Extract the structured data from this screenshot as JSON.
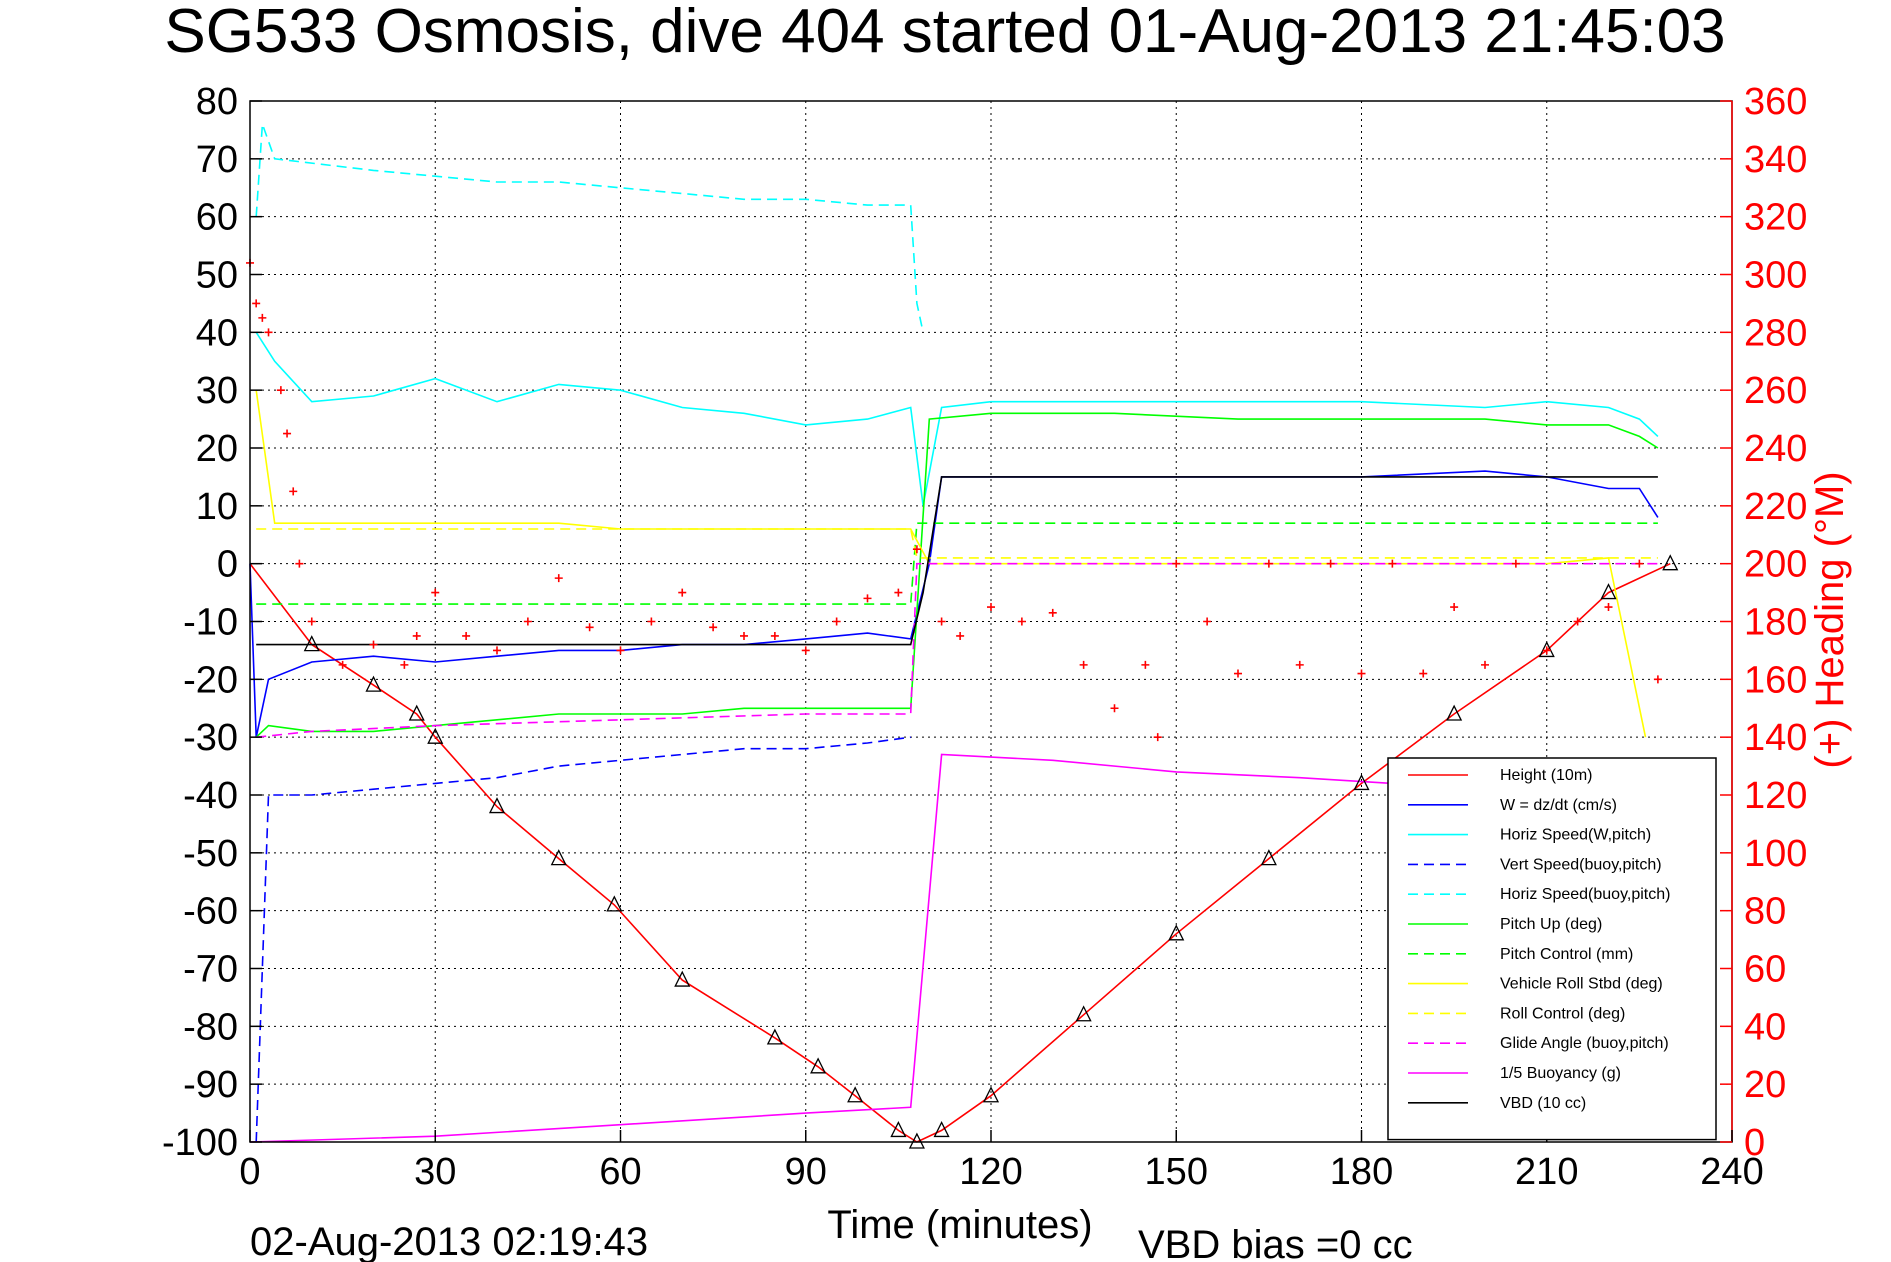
{
  "chart_data": {
    "type": "line",
    "title": "SG533 Osmosis, dive 404 started 01-Aug-2013 21:45:03",
    "xlabel": "Time (minutes)",
    "ylabel_right": "(+) Heading (°M)",
    "xlim": [
      0,
      240
    ],
    "ylim": [
      -100,
      80
    ],
    "ylim_right": [
      0,
      360
    ],
    "x_ticks": [
      "0",
      "30",
      "60",
      "90",
      "120",
      "150",
      "180",
      "210",
      "240"
    ],
    "y_ticks": [
      "80",
      "70",
      "60",
      "50",
      "40",
      "30",
      "20",
      "10",
      "0",
      "-10",
      "-20",
      "-30",
      "-40",
      "-50",
      "-60",
      "-70",
      "-80",
      "-90",
      "-100"
    ],
    "y_ticks_right": [
      "360",
      "340",
      "320",
      "300",
      "280",
      "260",
      "240",
      "220",
      "200",
      "180",
      "160",
      "140",
      "120",
      "100",
      "80",
      "60",
      "40",
      "20",
      "0"
    ],
    "grid": true,
    "legend_position": "bottom-right",
    "footer_left": "02-Aug-2013 02:19:43",
    "footer_right": "VBD bias =0 cc",
    "colors": {
      "height": "#ff0000",
      "w": "#0000ff",
      "horiz_speed_pitch": "#00ffff",
      "pitch_up": "#00ff00",
      "roll": "#ffff00",
      "glide": "#ff00ff",
      "vbd": "#000000",
      "heading": "#ff0000"
    },
    "series": [
      {
        "name": "Height (10m)",
        "color": "#ff0000",
        "style": "solid",
        "points": [
          [
            0,
            0
          ],
          [
            10,
            -14
          ],
          [
            20,
            -21
          ],
          [
            27,
            -26
          ],
          [
            30,
            -30
          ],
          [
            40,
            -42
          ],
          [
            50,
            -51
          ],
          [
            59,
            -59
          ],
          [
            70,
            -72
          ],
          [
            85,
            -82
          ],
          [
            92,
            -87
          ],
          [
            98,
            -92
          ],
          [
            105,
            -98
          ],
          [
            108,
            -100
          ],
          [
            112,
            -98
          ],
          [
            120,
            -92
          ],
          [
            135,
            -78
          ],
          [
            150,
            -64
          ],
          [
            165,
            -51
          ],
          [
            180,
            -38
          ],
          [
            195,
            -26
          ],
          [
            210,
            -15
          ],
          [
            220,
            -5
          ],
          [
            230,
            0
          ]
        ]
      },
      {
        "name": "W = dz/dt (cm/s)",
        "color": "#0000ff",
        "style": "solid",
        "points": [
          [
            0,
            0
          ],
          [
            1,
            -30
          ],
          [
            3,
            -20
          ],
          [
            10,
            -17
          ],
          [
            20,
            -16
          ],
          [
            30,
            -17
          ],
          [
            40,
            -16
          ],
          [
            50,
            -15
          ],
          [
            60,
            -15
          ],
          [
            70,
            -14
          ],
          [
            80,
            -14
          ],
          [
            90,
            -13
          ],
          [
            100,
            -12
          ],
          [
            107,
            -13
          ],
          [
            110,
            0
          ],
          [
            112,
            15
          ],
          [
            120,
            15
          ],
          [
            140,
            15
          ],
          [
            160,
            15
          ],
          [
            180,
            15
          ],
          [
            200,
            16
          ],
          [
            210,
            15
          ],
          [
            220,
            13
          ],
          [
            225,
            13
          ],
          [
            228,
            8
          ]
        ]
      },
      {
        "name": "Horiz Speed(W,pitch)",
        "color": "#00ffff",
        "style": "solid",
        "points": [
          [
            1,
            40
          ],
          [
            4,
            35
          ],
          [
            10,
            28
          ],
          [
            20,
            29
          ],
          [
            30,
            32
          ],
          [
            40,
            28
          ],
          [
            50,
            31
          ],
          [
            60,
            30
          ],
          [
            70,
            27
          ],
          [
            80,
            26
          ],
          [
            90,
            24
          ],
          [
            100,
            25
          ],
          [
            107,
            27
          ],
          [
            109,
            10
          ],
          [
            112,
            27
          ],
          [
            120,
            28
          ],
          [
            140,
            28
          ],
          [
            160,
            28
          ],
          [
            180,
            28
          ],
          [
            200,
            27
          ],
          [
            210,
            28
          ],
          [
            220,
            27
          ],
          [
            225,
            25
          ],
          [
            228,
            22
          ]
        ]
      },
      {
        "name": "Vert Speed(buoy,pitch)",
        "color": "#0000ff",
        "style": "dashed",
        "points": [
          [
            1,
            -100
          ],
          [
            3,
            -40
          ],
          [
            10,
            -40
          ],
          [
            20,
            -39
          ],
          [
            30,
            -38
          ],
          [
            40,
            -37
          ],
          [
            50,
            -35
          ],
          [
            60,
            -34
          ],
          [
            70,
            -33
          ],
          [
            80,
            -32
          ],
          [
            90,
            -32
          ],
          [
            100,
            -31
          ],
          [
            107,
            -30
          ]
        ]
      },
      {
        "name": "Horiz Speed(buoy,pitch)",
        "color": "#00ffff",
        "style": "dashed",
        "points": [
          [
            1,
            60
          ],
          [
            2,
            76
          ],
          [
            4,
            70
          ],
          [
            20,
            68
          ],
          [
            30,
            67
          ],
          [
            40,
            66
          ],
          [
            50,
            66
          ],
          [
            60,
            65
          ],
          [
            70,
            64
          ],
          [
            80,
            63
          ],
          [
            90,
            63
          ],
          [
            100,
            62
          ],
          [
            107,
            62
          ],
          [
            108,
            45
          ],
          [
            109,
            40
          ]
        ]
      },
      {
        "name": "Pitch Up (deg)",
        "color": "#00ff00",
        "style": "solid",
        "points": [
          [
            1,
            -30
          ],
          [
            3,
            -28
          ],
          [
            10,
            -29
          ],
          [
            20,
            -29
          ],
          [
            30,
            -28
          ],
          [
            40,
            -27
          ],
          [
            50,
            -26
          ],
          [
            60,
            -26
          ],
          [
            70,
            -26
          ],
          [
            80,
            -25
          ],
          [
            90,
            -25
          ],
          [
            100,
            -25
          ],
          [
            107,
            -25
          ],
          [
            110,
            25
          ],
          [
            120,
            26
          ],
          [
            140,
            26
          ],
          [
            160,
            25
          ],
          [
            180,
            25
          ],
          [
            200,
            25
          ],
          [
            210,
            24
          ],
          [
            220,
            24
          ],
          [
            225,
            22
          ],
          [
            228,
            20
          ]
        ]
      },
      {
        "name": "Pitch Control (mm)",
        "color": "#00ff00",
        "style": "dashed",
        "points": [
          [
            1,
            -7
          ],
          [
            107,
            -7
          ],
          [
            108,
            7
          ],
          [
            228,
            7
          ]
        ]
      },
      {
        "name": "Vehicle Roll Stbd (deg)",
        "color": "#ffff00",
        "style": "solid",
        "points": [
          [
            1,
            30
          ],
          [
            4,
            7
          ],
          [
            20,
            7
          ],
          [
            30,
            7
          ],
          [
            40,
            7
          ],
          [
            50,
            7
          ],
          [
            60,
            6
          ],
          [
            70,
            6
          ],
          [
            80,
            6
          ],
          [
            90,
            6
          ],
          [
            100,
            6
          ],
          [
            107,
            6
          ],
          [
            110,
            0
          ],
          [
            130,
            0
          ],
          [
            150,
            0
          ],
          [
            170,
            0
          ],
          [
            190,
            0
          ],
          [
            210,
            0
          ],
          [
            220,
            1
          ],
          [
            226,
            -30
          ]
        ]
      },
      {
        "name": "Roll Control (deg)",
        "color": "#ffff00",
        "style": "dashed",
        "points": [
          [
            1,
            6
          ],
          [
            107,
            6
          ],
          [
            108,
            1
          ],
          [
            228,
            1
          ]
        ]
      },
      {
        "name": "Glide Angle (buoy,pitch)",
        "color": "#ff00ff",
        "style": "dashed",
        "points": [
          [
            1,
            -30
          ],
          [
            10,
            -29
          ],
          [
            30,
            -28
          ],
          [
            60,
            -27
          ],
          [
            90,
            -26
          ],
          [
            107,
            -26
          ],
          [
            108,
            0
          ],
          [
            228,
            0
          ]
        ]
      },
      {
        "name": "1/5 Buoyancy (g)",
        "color": "#ff00ff",
        "style": "solid",
        "points": [
          [
            0,
            -100
          ],
          [
            30,
            -99
          ],
          [
            60,
            -97
          ],
          [
            90,
            -95
          ],
          [
            107,
            -94
          ],
          [
            112,
            -33
          ],
          [
            130,
            -34
          ],
          [
            150,
            -36
          ],
          [
            170,
            -37
          ],
          [
            185,
            -38
          ]
        ]
      },
      {
        "name": "VBD (10 cc)",
        "color": "#000000",
        "style": "solid",
        "points": [
          [
            1,
            -14
          ],
          [
            107,
            -14
          ],
          [
            109,
            -5
          ],
          [
            112,
            15
          ],
          [
            228,
            15
          ]
        ]
      }
    ],
    "heading_points_right_axis": [
      [
        0,
        304
      ],
      [
        1,
        290
      ],
      [
        2,
        285
      ],
      [
        3,
        280
      ],
      [
        5,
        260
      ],
      [
        6,
        245
      ],
      [
        7,
        225
      ],
      [
        8,
        200
      ],
      [
        10,
        180
      ],
      [
        15,
        165
      ],
      [
        20,
        172
      ],
      [
        25,
        165
      ],
      [
        27,
        175
      ],
      [
        30,
        190
      ],
      [
        35,
        175
      ],
      [
        40,
        170
      ],
      [
        45,
        180
      ],
      [
        50,
        195
      ],
      [
        55,
        178
      ],
      [
        60,
        170
      ],
      [
        65,
        180
      ],
      [
        70,
        190
      ],
      [
        75,
        178
      ],
      [
        80,
        175
      ],
      [
        85,
        175
      ],
      [
        90,
        170
      ],
      [
        95,
        180
      ],
      [
        100,
        188
      ],
      [
        105,
        190
      ],
      [
        108,
        205
      ],
      [
        112,
        180
      ],
      [
        115,
        175
      ],
      [
        120,
        185
      ],
      [
        125,
        180
      ],
      [
        130,
        183
      ],
      [
        135,
        165
      ],
      [
        140,
        150
      ],
      [
        145,
        165
      ],
      [
        147,
        140
      ],
      [
        150,
        200
      ],
      [
        155,
        180
      ],
      [
        160,
        162
      ],
      [
        165,
        200
      ],
      [
        170,
        165
      ],
      [
        175,
        200
      ],
      [
        180,
        162
      ],
      [
        185,
        200
      ],
      [
        190,
        162
      ],
      [
        195,
        185
      ],
      [
        200,
        165
      ],
      [
        205,
        200
      ],
      [
        210,
        170
      ],
      [
        215,
        180
      ],
      [
        220,
        185
      ],
      [
        225,
        200
      ],
      [
        228,
        160
      ]
    ]
  }
}
